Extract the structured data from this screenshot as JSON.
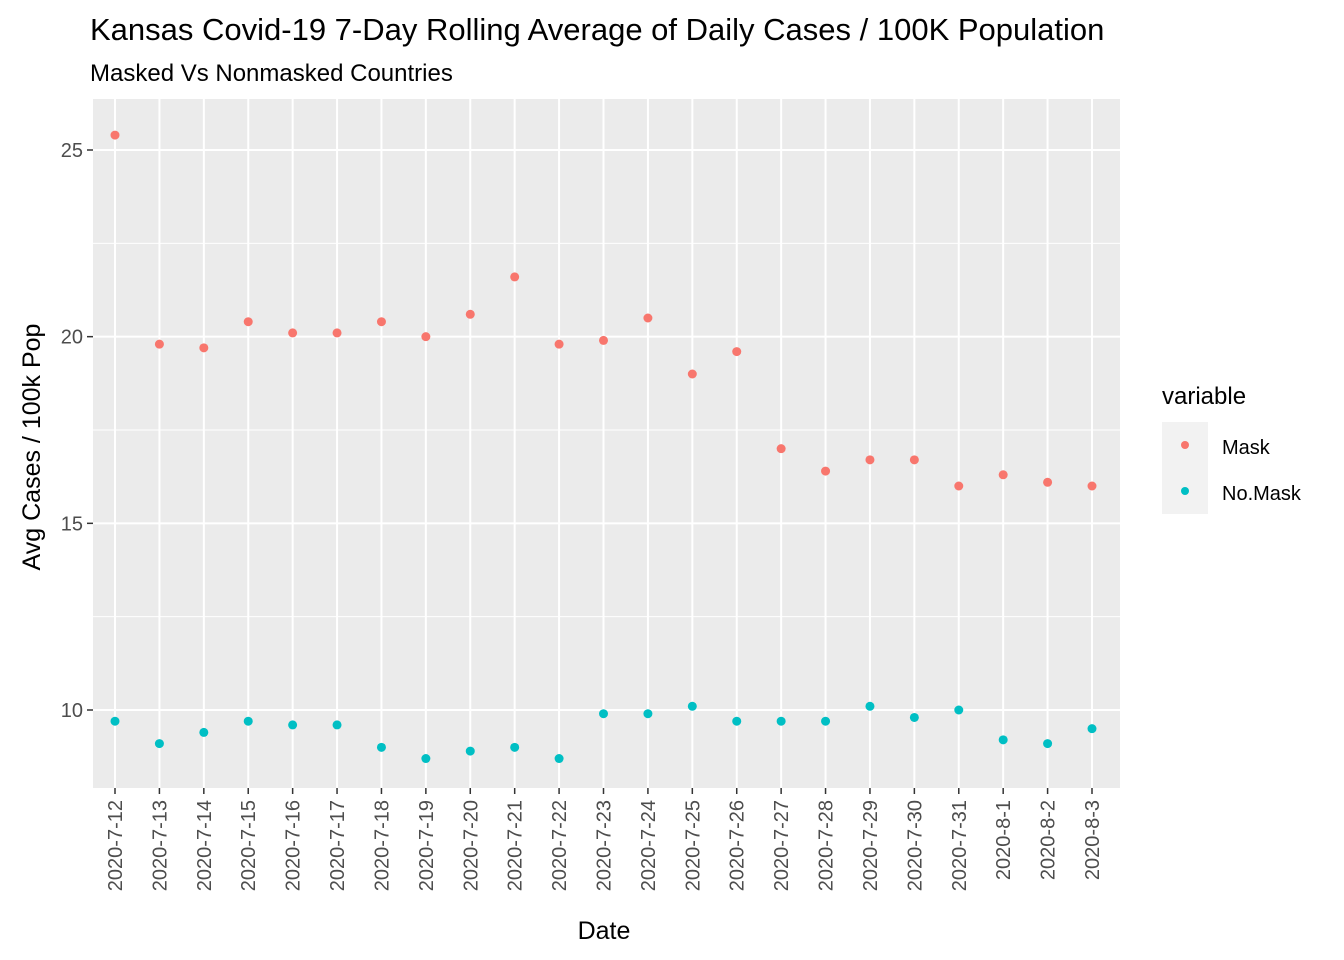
{
  "chart_data": {
    "type": "scatter",
    "title": "Kansas Covid-19 7-Day Rolling Average of Daily Cases / 100K Population",
    "subtitle": "Masked Vs Nonmasked Countries",
    "xlabel": "Date",
    "ylabel": "Avg Cases / 100k Pop",
    "categories": [
      "2020-7-12",
      "2020-7-13",
      "2020-7-14",
      "2020-7-15",
      "2020-7-16",
      "2020-7-17",
      "2020-7-18",
      "2020-7-19",
      "2020-7-20",
      "2020-7-21",
      "2020-7-22",
      "2020-7-23",
      "2020-7-24",
      "2020-7-25",
      "2020-7-26",
      "2020-7-27",
      "2020-7-28",
      "2020-7-29",
      "2020-7-30",
      "2020-7-31",
      "2020-8-1",
      "2020-8-2",
      "2020-8-3"
    ],
    "yticks": [
      "10",
      "15",
      "20",
      "25"
    ],
    "ylim": [
      7.9,
      26.0
    ],
    "grid": true,
    "legend_position": "right",
    "legend_title": "variable",
    "series": [
      {
        "name": "Mask",
        "color": "#F8766D",
        "values": [
          25.4,
          19.8,
          19.7,
          20.4,
          20.1,
          20.1,
          20.4,
          20.0,
          20.6,
          21.6,
          19.8,
          19.9,
          20.5,
          19.0,
          19.6,
          17.0,
          16.4,
          16.7,
          16.7,
          16.0,
          16.3,
          16.1,
          16.0
        ]
      },
      {
        "name": "No.Mask",
        "color": "#00BFC4",
        "values": [
          9.7,
          9.1,
          9.4,
          9.7,
          9.6,
          9.6,
          9.0,
          8.7,
          8.9,
          9.0,
          8.7,
          9.9,
          9.9,
          10.1,
          9.7,
          9.7,
          9.7,
          10.1,
          9.8,
          10.0,
          9.2,
          9.1,
          9.5
        ]
      }
    ]
  }
}
